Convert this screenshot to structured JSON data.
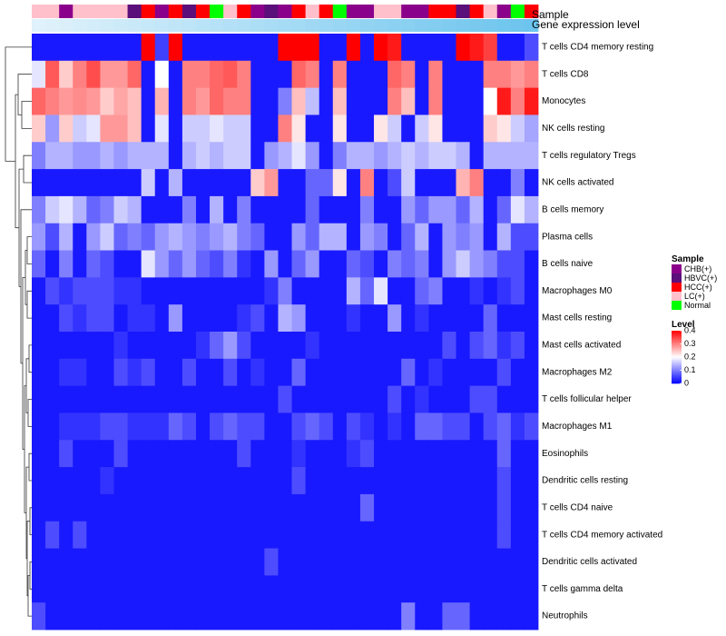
{
  "chart_data": {
    "type": "heatmap",
    "title": "",
    "annotation_labels": [
      "Sample",
      "Gene expression level"
    ],
    "rows": [
      "T cells CD4 memory resting",
      "T cells CD8",
      "Monocytes",
      "NK cells resting",
      "T cells regulatory  Tregs",
      "NK cells activated",
      "B cells memory",
      "Plasma cells",
      "B cells naive",
      "Macrophages M0",
      "Mast cells resting",
      "Mast cells activated",
      "Macrophages M2",
      "T cells follicular helper",
      "Macrophages M1",
      "Eosinophils",
      "Dendritic cells resting",
      "T cells CD4 naive",
      "T cells CD4 memory activated",
      "Dendritic cells activated",
      "T cells gamma delta",
      "Neutrophils"
    ],
    "sample_groups": [
      "LC(+)",
      "LC(+)",
      "CHB(+)",
      "LC(+)",
      "LC(+)",
      "LC(+)",
      "LC(+)",
      "HBVC(+)",
      "HCC(+)",
      "CHB(+)",
      "HCC(+)",
      "HBVC(+)",
      "HCC(+)",
      "Normal",
      "LC(+)",
      "HCC(+)",
      "CHB(+)",
      "HBVC(+)",
      "CHB(+)",
      "HCC(+)",
      "LC(+)",
      "HCC(+)",
      "Normal",
      "CHB(+)",
      "CHB(+)",
      "LC(+)",
      "LC(+)",
      "CHB(+)",
      "CHB(+)",
      "HCC(+)",
      "HCC(+)",
      "HBVC(+)",
      "HCC(+)",
      "LC(+)",
      "CHB(+)",
      "Normal",
      "HCC(+)"
    ],
    "values": [
      [
        0.02,
        0.02,
        0.02,
        0.02,
        0.02,
        0.02,
        0.02,
        0.02,
        0.4,
        0.05,
        0.4,
        0.02,
        0.02,
        0.02,
        0.02,
        0.02,
        0.02,
        0.02,
        0.4,
        0.4,
        0.4,
        0.02,
        0.02,
        0.4,
        0.02,
        0.4,
        0.38,
        0.02,
        0.02,
        0.02,
        0.02,
        0.4,
        0.38,
        0.35,
        0.02,
        0.02,
        0.06
      ],
      [
        0.18,
        0.33,
        0.24,
        0.3,
        0.34,
        0.28,
        0.28,
        0.32,
        0.02,
        0.2,
        0.02,
        0.3,
        0.3,
        0.32,
        0.33,
        0.3,
        0.02,
        0.02,
        0.02,
        0.32,
        0.3,
        0.02,
        0.3,
        0.02,
        0.02,
        0.02,
        0.32,
        0.3,
        0.02,
        0.3,
        0.02,
        0.02,
        0.02,
        0.3,
        0.3,
        0.28,
        0.3
      ],
      [
        0.32,
        0.3,
        0.28,
        0.29,
        0.28,
        0.24,
        0.27,
        0.25,
        0.02,
        0.26,
        0.02,
        0.3,
        0.28,
        0.32,
        0.3,
        0.3,
        0.02,
        0.02,
        0.1,
        0.25,
        0.15,
        0.02,
        0.25,
        0.02,
        0.02,
        0.02,
        0.3,
        0.25,
        0.02,
        0.3,
        0.02,
        0.02,
        0.02,
        0.2,
        0.38,
        0.3,
        0.38
      ],
      [
        0.24,
        0.12,
        0.24,
        0.16,
        0.18,
        0.28,
        0.28,
        0.25,
        0.02,
        0.18,
        0.02,
        0.16,
        0.16,
        0.18,
        0.16,
        0.16,
        0.02,
        0.02,
        0.3,
        0.22,
        0.02,
        0.02,
        0.22,
        0.02,
        0.02,
        0.22,
        0.16,
        0.02,
        0.16,
        0.22,
        0.02,
        0.02,
        0.02,
        0.24,
        0.22,
        0.16,
        0.13
      ],
      [
        0.1,
        0.14,
        0.14,
        0.12,
        0.12,
        0.14,
        0.12,
        0.14,
        0.14,
        0.14,
        0.02,
        0.14,
        0.16,
        0.14,
        0.16,
        0.16,
        0.02,
        0.12,
        0.14,
        0.18,
        0.12,
        0.02,
        0.1,
        0.14,
        0.14,
        0.12,
        0.14,
        0.16,
        0.14,
        0.16,
        0.16,
        0.14,
        0.02,
        0.14,
        0.14,
        0.14,
        0.14
      ],
      [
        0.02,
        0.02,
        0.02,
        0.02,
        0.02,
        0.02,
        0.02,
        0.02,
        0.16,
        0.02,
        0.14,
        0.02,
        0.02,
        0.02,
        0.02,
        0.02,
        0.24,
        0.28,
        0.02,
        0.02,
        0.08,
        0.08,
        0.22,
        0.02,
        0.3,
        0.02,
        0.06,
        0.16,
        0.02,
        0.02,
        0.02,
        0.26,
        0.3,
        0.02,
        0.02,
        0.1,
        0.02
      ],
      [
        0.1,
        0.16,
        0.18,
        0.14,
        0.08,
        0.1,
        0.16,
        0.14,
        0.02,
        0.02,
        0.02,
        0.1,
        0.02,
        0.14,
        0.02,
        0.1,
        0.02,
        0.02,
        0.02,
        0.02,
        0.08,
        0.02,
        0.02,
        0.02,
        0.1,
        0.02,
        0.02,
        0.12,
        0.08,
        0.12,
        0.12,
        0.08,
        0.14,
        0.02,
        0.08,
        0.18,
        0.14
      ],
      [
        0.12,
        0.06,
        0.14,
        0.02,
        0.12,
        0.16,
        0.08,
        0.1,
        0.08,
        0.12,
        0.14,
        0.12,
        0.1,
        0.12,
        0.14,
        0.1,
        0.08,
        0.02,
        0.02,
        0.12,
        0.08,
        0.14,
        0.14,
        0.02,
        0.12,
        0.1,
        0.02,
        0.08,
        0.14,
        0.02,
        0.12,
        0.1,
        0.12,
        0.02,
        0.14,
        0.06,
        0.06
      ],
      [
        0.08,
        0.02,
        0.1,
        0.02,
        0.08,
        0.06,
        0.02,
        0.02,
        0.18,
        0.12,
        0.08,
        0.12,
        0.08,
        0.06,
        0.1,
        0.04,
        0.02,
        0.12,
        0.02,
        0.08,
        0.12,
        0.02,
        0.02,
        0.08,
        0.06,
        0.02,
        0.1,
        0.08,
        0.1,
        0.02,
        0.12,
        0.16,
        0.12,
        0.1,
        0.06,
        0.06,
        0.02
      ],
      [
        0.02,
        0.06,
        0.04,
        0.06,
        0.06,
        0.06,
        0.04,
        0.04,
        0.02,
        0.02,
        0.02,
        0.02,
        0.02,
        0.02,
        0.02,
        0.02,
        0.02,
        0.04,
        0.1,
        0.02,
        0.02,
        0.02,
        0.02,
        0.14,
        0.08,
        0.18,
        0.02,
        0.02,
        0.08,
        0.1,
        0.02,
        0.02,
        0.04,
        0.02,
        0.04,
        0.06,
        0.02
      ],
      [
        0.02,
        0.02,
        0.06,
        0.04,
        0.06,
        0.06,
        0.02,
        0.04,
        0.04,
        0.02,
        0.12,
        0.02,
        0.02,
        0.02,
        0.02,
        0.04,
        0.06,
        0.02,
        0.14,
        0.12,
        0.02,
        0.02,
        0.02,
        0.04,
        0.02,
        0.02,
        0.12,
        0.02,
        0.04,
        0.02,
        0.02,
        0.02,
        0.02,
        0.08,
        0.02,
        0.02,
        0.02
      ],
      [
        0.02,
        0.02,
        0.02,
        0.02,
        0.02,
        0.02,
        0.04,
        0.02,
        0.02,
        0.02,
        0.02,
        0.02,
        0.04,
        0.08,
        0.12,
        0.06,
        0.02,
        0.02,
        0.02,
        0.02,
        0.04,
        0.02,
        0.02,
        0.02,
        0.02,
        0.02,
        0.02,
        0.02,
        0.02,
        0.02,
        0.06,
        0.02,
        0.06,
        0.08,
        0.04,
        0.06,
        0.02
      ],
      [
        0.02,
        0.02,
        0.04,
        0.04,
        0.02,
        0.02,
        0.06,
        0.04,
        0.06,
        0.02,
        0.02,
        0.06,
        0.02,
        0.02,
        0.06,
        0.02,
        0.04,
        0.02,
        0.02,
        0.08,
        0.02,
        0.02,
        0.02,
        0.02,
        0.02,
        0.02,
        0.02,
        0.08,
        0.02,
        0.04,
        0.02,
        0.02,
        0.02,
        0.02,
        0.06,
        0.02,
        0.02
      ],
      [
        0.02,
        0.02,
        0.02,
        0.02,
        0.02,
        0.02,
        0.02,
        0.02,
        0.02,
        0.02,
        0.02,
        0.02,
        0.02,
        0.02,
        0.02,
        0.02,
        0.02,
        0.02,
        0.06,
        0.02,
        0.02,
        0.02,
        0.02,
        0.02,
        0.02,
        0.02,
        0.06,
        0.02,
        0.04,
        0.02,
        0.02,
        0.02,
        0.06,
        0.06,
        0.02,
        0.02,
        0.02
      ],
      [
        0.02,
        0.02,
        0.04,
        0.04,
        0.04,
        0.06,
        0.06,
        0.04,
        0.04,
        0.04,
        0.08,
        0.06,
        0.02,
        0.06,
        0.08,
        0.06,
        0.06,
        0.02,
        0.02,
        0.06,
        0.08,
        0.06,
        0.02,
        0.06,
        0.04,
        0.02,
        0.04,
        0.02,
        0.08,
        0.08,
        0.06,
        0.06,
        0.02,
        0.06,
        0.08,
        0.04,
        0.06
      ],
      [
        0.02,
        0.02,
        0.06,
        0.02,
        0.02,
        0.02,
        0.06,
        0.02,
        0.02,
        0.02,
        0.02,
        0.02,
        0.02,
        0.02,
        0.02,
        0.06,
        0.02,
        0.02,
        0.02,
        0.04,
        0.02,
        0.02,
        0.02,
        0.04,
        0.06,
        0.02,
        0.02,
        0.02,
        0.02,
        0.02,
        0.02,
        0.02,
        0.02,
        0.02,
        0.08,
        0.02,
        0.02
      ],
      [
        0.02,
        0.02,
        0.02,
        0.02,
        0.02,
        0.04,
        0.02,
        0.02,
        0.02,
        0.02,
        0.02,
        0.02,
        0.02,
        0.02,
        0.02,
        0.02,
        0.02,
        0.02,
        0.02,
        0.06,
        0.02,
        0.02,
        0.02,
        0.02,
        0.02,
        0.02,
        0.02,
        0.02,
        0.02,
        0.02,
        0.02,
        0.02,
        0.02,
        0.02,
        0.06,
        0.02,
        0.02
      ],
      [
        0.02,
        0.02,
        0.02,
        0.02,
        0.02,
        0.02,
        0.02,
        0.02,
        0.02,
        0.02,
        0.02,
        0.02,
        0.02,
        0.02,
        0.02,
        0.02,
        0.02,
        0.02,
        0.02,
        0.02,
        0.02,
        0.02,
        0.02,
        0.02,
        0.08,
        0.02,
        0.02,
        0.02,
        0.02,
        0.02,
        0.02,
        0.02,
        0.02,
        0.02,
        0.06,
        0.02,
        0.02
      ],
      [
        0.02,
        0.06,
        0.02,
        0.06,
        0.02,
        0.02,
        0.02,
        0.02,
        0.02,
        0.02,
        0.02,
        0.02,
        0.02,
        0.02,
        0.02,
        0.02,
        0.02,
        0.02,
        0.02,
        0.02,
        0.02,
        0.02,
        0.02,
        0.02,
        0.02,
        0.02,
        0.02,
        0.02,
        0.02,
        0.02,
        0.02,
        0.02,
        0.02,
        0.02,
        0.06,
        0.02,
        0.02
      ],
      [
        0.02,
        0.02,
        0.02,
        0.02,
        0.02,
        0.02,
        0.02,
        0.02,
        0.02,
        0.02,
        0.02,
        0.02,
        0.02,
        0.02,
        0.02,
        0.02,
        0.02,
        0.06,
        0.02,
        0.02,
        0.02,
        0.02,
        0.02,
        0.02,
        0.02,
        0.02,
        0.02,
        0.02,
        0.02,
        0.02,
        0.02,
        0.02,
        0.02,
        0.02,
        0.02,
        0.02,
        0.02
      ],
      [
        0.02,
        0.02,
        0.02,
        0.02,
        0.02,
        0.02,
        0.02,
        0.02,
        0.02,
        0.02,
        0.02,
        0.02,
        0.02,
        0.02,
        0.02,
        0.02,
        0.02,
        0.02,
        0.02,
        0.02,
        0.02,
        0.02,
        0.02,
        0.02,
        0.02,
        0.02,
        0.02,
        0.02,
        0.02,
        0.02,
        0.02,
        0.02,
        0.02,
        0.02,
        0.02,
        0.02,
        0.02
      ],
      [
        0.06,
        0.02,
        0.02,
        0.02,
        0.02,
        0.02,
        0.02,
        0.02,
        0.02,
        0.02,
        0.02,
        0.02,
        0.02,
        0.02,
        0.02,
        0.02,
        0.02,
        0.02,
        0.02,
        0.02,
        0.02,
        0.02,
        0.02,
        0.02,
        0.02,
        0.02,
        0.02,
        0.1,
        0.02,
        0.02,
        0.08,
        0.08,
        0.02,
        0.02,
        0.02,
        0.02,
        0.02
      ]
    ],
    "legend_sample": {
      "title": "Sample",
      "entries": [
        {
          "label": "CHB(+)",
          "color": "#8b008b"
        },
        {
          "label": "HBVC(+)",
          "color": "#5b0f7a"
        },
        {
          "label": "HCC(+)",
          "color": "#ff0000"
        },
        {
          "label": "LC(+)",
          "color": "#ffc0cb"
        },
        {
          "label": "Normal",
          "color": "#00ff00"
        }
      ]
    },
    "legend_level": {
      "title": "Level",
      "ticks": [
        "0.4",
        "0.3",
        "0.2",
        "0.1",
        "0"
      ],
      "range": [
        0,
        0.4
      ],
      "colors": [
        "#0000ff",
        "#ffffff",
        "#ff0000"
      ]
    },
    "gene_expression_colors": [
      "#e0f2fb",
      "#6cc4ee"
    ]
  }
}
